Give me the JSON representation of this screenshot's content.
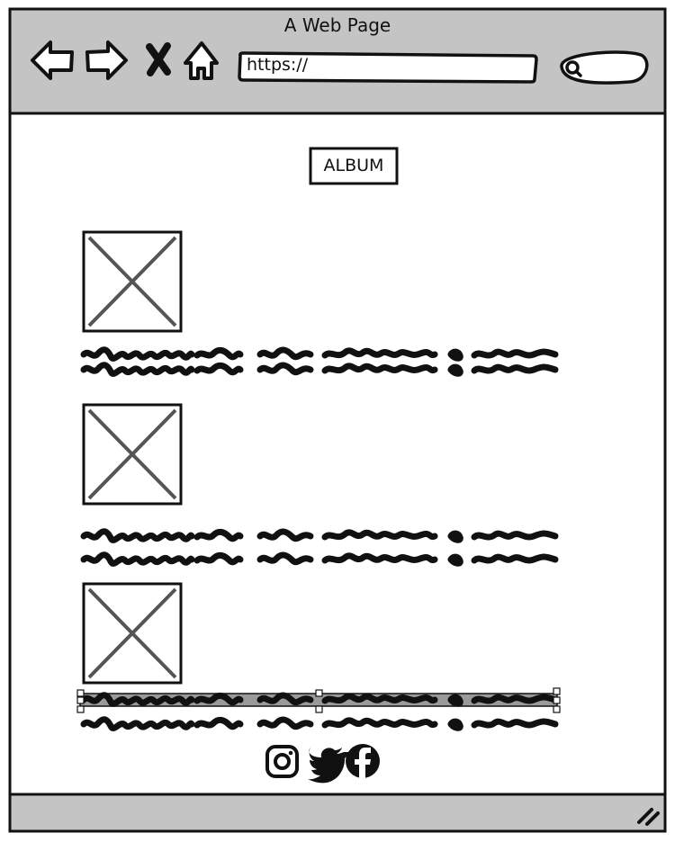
{
  "browser": {
    "title": "A Web Page",
    "url_value": "https://",
    "icons": [
      "back-arrow-icon",
      "forward-arrow-icon",
      "close-x-icon",
      "home-icon",
      "search-icon"
    ]
  },
  "main": {
    "album_label": "ALBUM",
    "items_count_visible": 3
  },
  "social": {
    "icons": [
      "instagram-icon",
      "twitter-icon",
      "facebook-icon"
    ]
  },
  "statusbar": {
    "icons": [
      "resize-grip-icon"
    ]
  },
  "colors": {
    "chrome": "#c4c4c4",
    "stroke": "#111111",
    "placeholder": "#555555",
    "selection": "#9a9a9a"
  }
}
